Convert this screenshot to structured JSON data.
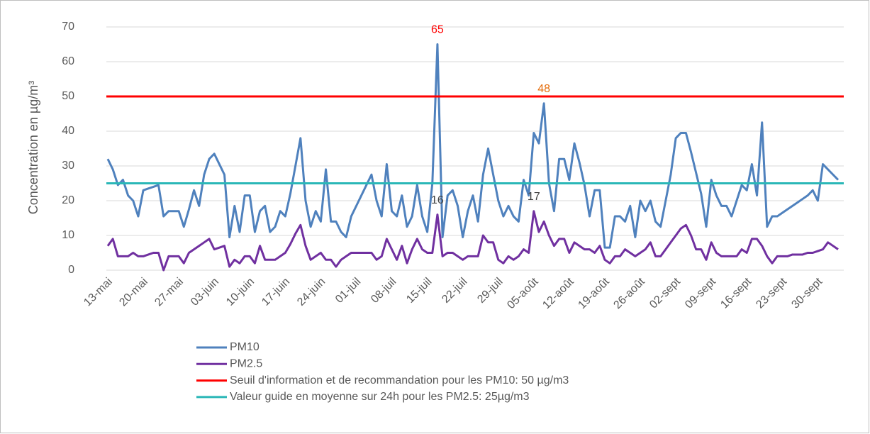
{
  "chart_data": {
    "type": "line",
    "ylabel": "Concentration en µg/m³",
    "categories": [
      "13-mai",
      null,
      null,
      null,
      null,
      null,
      null,
      "20-mai",
      null,
      null,
      null,
      null,
      null,
      null,
      "27-mai",
      null,
      null,
      null,
      null,
      null,
      null,
      "03-juin",
      null,
      null,
      null,
      null,
      null,
      null,
      "10-juin",
      null,
      null,
      null,
      null,
      null,
      null,
      "17-juin",
      null,
      null,
      null,
      null,
      null,
      null,
      "24-juin",
      null,
      null,
      null,
      null,
      null,
      null,
      "01-juil",
      null,
      null,
      null,
      null,
      null,
      null,
      "08-juil",
      null,
      null,
      null,
      null,
      null,
      null,
      "15-juil",
      null,
      null,
      null,
      null,
      null,
      null,
      "22-juil",
      null,
      null,
      null,
      null,
      null,
      null,
      "29-juil",
      null,
      null,
      null,
      null,
      null,
      null,
      "05-août",
      null,
      null,
      null,
      null,
      null,
      null,
      "12-août",
      null,
      null,
      null,
      null,
      null,
      null,
      "19-août",
      null,
      null,
      null,
      null,
      null,
      null,
      "26-août",
      null,
      null,
      null,
      null,
      null,
      null,
      "02-sept",
      null,
      null,
      null,
      null,
      null,
      null,
      "09-sept",
      null,
      null,
      null,
      null,
      null,
      null,
      "16-sept",
      null,
      null,
      null,
      null,
      null,
      null,
      "23-sept",
      null,
      null,
      null,
      null,
      null,
      null,
      "30-sept",
      null,
      null,
      null,
      null
    ],
    "series": [
      {
        "name": "PM10",
        "color": "#4f81bd",
        "values": [
          32,
          29,
          24.5,
          26,
          21.5,
          20,
          15.5,
          23,
          23.5,
          24,
          24.5,
          15.5,
          17,
          17,
          17,
          12.5,
          17.5,
          23,
          18.5,
          27.5,
          32,
          33.5,
          30.5,
          27.5,
          9.5,
          18.5,
          11,
          21.5,
          21.5,
          11,
          17,
          18.5,
          11,
          12.5,
          17,
          15.5,
          22,
          30,
          38,
          20,
          12.5,
          17,
          14,
          29,
          14,
          14,
          11,
          9.5,
          15.5,
          18.5,
          21.5,
          24.5,
          27.5,
          20,
          15.5,
          30.5,
          17,
          15.5,
          21.5,
          12.5,
          15.5,
          24.5,
          15.5,
          11,
          25,
          65,
          9.5,
          21.5,
          23,
          18.5,
          9.5,
          17,
          21.5,
          14,
          27.5,
          35,
          27.5,
          20,
          15.5,
          18.5,
          15.5,
          14,
          26,
          21.5,
          39.5,
          36.5,
          48,
          25,
          17,
          32,
          32,
          26,
          36.5,
          31,
          24.5,
          15.5,
          23,
          23,
          6.5,
          6.5,
          15.5,
          15.5,
          14,
          18.5,
          9.5,
          20,
          17,
          20,
          14,
          12.5,
          20,
          27.5,
          38,
          39.5,
          39.5,
          34,
          28,
          22,
          12.5,
          26,
          21.5,
          18.5,
          18.5,
          15.5,
          20,
          24.5,
          23,
          30.5,
          21.5,
          42.5,
          12.5,
          15.5,
          15.5,
          16.5,
          17.5,
          18.5,
          19.5,
          20.5,
          21.5,
          23,
          20,
          30.5,
          29,
          27.5,
          26
        ],
        "labels": [
          {
            "index": 65,
            "color": "#ff0000"
          },
          {
            "index": 86,
            "color": "#e46c0a"
          }
        ]
      },
      {
        "name": "PM2.5",
        "color": "#7030a0",
        "values": [
          7,
          9,
          4,
          4,
          4,
          5,
          4,
          4,
          4.5,
          5,
          5,
          0,
          4,
          4,
          4,
          2,
          5,
          6,
          7,
          8,
          9,
          6,
          6.5,
          7,
          1,
          3,
          2,
          4,
          4,
          2,
          7,
          3,
          3,
          3,
          4,
          5,
          7.5,
          10.5,
          13,
          7,
          3,
          4,
          5,
          3,
          3,
          1,
          3,
          4,
          5,
          5,
          5,
          5,
          5,
          3,
          4,
          9,
          6,
          3,
          7,
          2,
          6,
          9,
          6,
          5,
          5,
          16,
          4,
          5,
          5,
          4,
          3,
          4,
          4,
          4,
          10,
          8,
          8,
          3,
          2,
          4,
          3,
          4,
          6,
          5,
          17,
          11,
          14,
          10,
          7,
          9,
          9,
          5,
          8,
          7,
          6,
          6,
          5,
          7,
          3,
          2,
          4,
          4,
          6,
          5,
          4,
          5,
          6,
          8,
          4,
          4,
          6,
          8,
          10,
          12,
          13,
          10,
          6,
          6,
          3,
          8,
          5,
          4,
          4,
          4,
          4,
          6,
          5,
          9,
          9,
          7,
          4,
          2,
          4,
          4,
          4,
          4.5,
          4.5,
          4.5,
          5,
          5,
          5.5,
          6,
          8,
          7,
          6
        ],
        "labels": [
          {
            "index": 65,
            "color": "#404040"
          },
          {
            "index": 84,
            "color": "#404040"
          }
        ]
      },
      {
        "name": "Seuil d'information et de recommandation pour les PM10: 50 µg/m3",
        "color": "#ff0000",
        "type": "hline",
        "value": 50
      },
      {
        "name": "Valeur guide en moyenne sur 24h pour les PM2.5: 25µg/m3",
        "color": "#2ab7b7",
        "type": "hline",
        "value": 25
      }
    ],
    "ylim": [
      0,
      70
    ],
    "yticks": [
      0,
      10,
      20,
      30,
      40,
      50,
      60,
      70
    ],
    "grid": true
  }
}
